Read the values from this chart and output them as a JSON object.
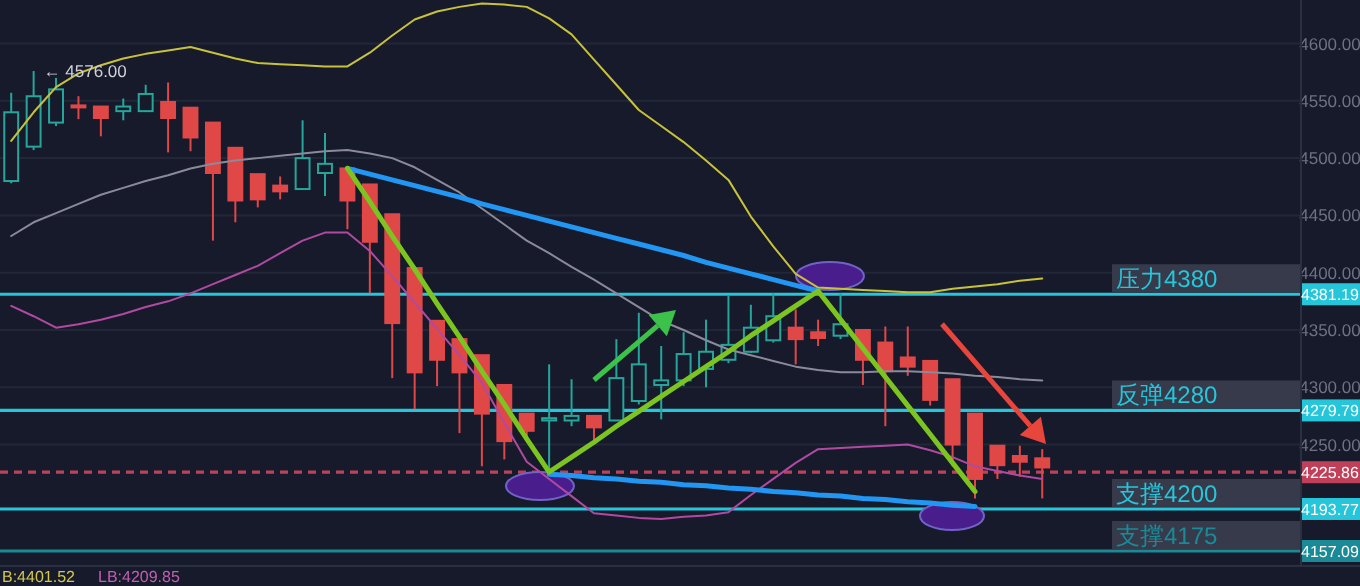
{
  "chart_data": {
    "type": "candlestick",
    "categories": [
      null,
      null,
      null,
      null,
      null,
      null,
      null,
      null,
      null,
      null,
      null,
      null,
      null,
      null,
      null,
      null,
      null,
      null,
      null,
      null,
      null,
      null,
      null,
      null,
      null,
      null,
      null,
      null,
      null,
      null,
      null,
      null,
      null,
      null,
      null,
      null,
      null,
      null,
      null,
      null,
      null,
      null,
      null,
      null,
      null,
      null,
      null,
      null,
      null,
      null,
      null,
      null,
      null,
      null,
      null,
      null,
      null,
      null
    ],
    "ohlc": [
      [
        4480,
        4557,
        4478,
        4540
      ],
      [
        4510,
        4576,
        4507,
        4554
      ],
      [
        4531,
        4570,
        4528,
        4560
      ],
      [
        4546,
        4554,
        4534,
        4545
      ],
      [
        4545,
        4545,
        4519,
        4535
      ],
      [
        4541,
        4552,
        4533,
        4545
      ],
      [
        4541,
        4564,
        4541,
        4556
      ],
      [
        4549,
        4566,
        4505,
        4535
      ],
      [
        4544,
        4544,
        4506,
        4518
      ],
      [
        4531,
        4531,
        4428,
        4487
      ],
      [
        4509,
        4509,
        4444,
        4463
      ],
      [
        4486,
        4486,
        4457,
        4464
      ],
      [
        4476,
        4484,
        4464,
        4471
      ],
      [
        4473,
        4533,
        4473,
        4500
      ],
      [
        4487,
        4522,
        4467,
        4495
      ],
      [
        4491,
        4491,
        4438,
        4463
      ],
      [
        4477,
        4477,
        4382,
        4427
      ],
      [
        4451,
        4451,
        4308,
        4356
      ],
      [
        4404,
        4404,
        4281,
        4313
      ],
      [
        4358,
        4358,
        4301,
        4324
      ],
      [
        4342,
        4342,
        4260,
        4313
      ],
      [
        4328,
        4328,
        4231,
        4277
      ],
      [
        4302,
        4302,
        4237,
        4253
      ],
      [
        4277,
        4277,
        4254,
        4262
      ],
      [
        4271,
        4320,
        4228,
        4273
      ],
      [
        4271,
        4307,
        4266,
        4275
      ],
      [
        4275,
        4275,
        4254,
        4265
      ],
      [
        4271,
        4342,
        4271,
        4308
      ],
      [
        4288,
        4365,
        4285,
        4320
      ],
      [
        4302,
        4336,
        4272,
        4306
      ],
      [
        4306,
        4348,
        4301,
        4329
      ],
      [
        4316,
        4359,
        4300,
        4331
      ],
      [
        4324,
        4380,
        4321,
        4337
      ],
      [
        4331,
        4372,
        4330,
        4352
      ],
      [
        4341,
        4382,
        4339,
        4362
      ],
      [
        4352,
        4368,
        4320,
        4342
      ],
      [
        4348,
        4359,
        4336,
        4343
      ],
      [
        4345,
        4382,
        4342,
        4355
      ],
      [
        4350,
        4350,
        4302,
        4324
      ],
      [
        4339,
        4353,
        4266,
        4314
      ],
      [
        4326,
        4353,
        4310,
        4318
      ],
      [
        4323,
        4323,
        4284,
        4289
      ],
      [
        4307,
        4307,
        4231,
        4250
      ],
      [
        4277,
        4277,
        4203,
        4220
      ],
      [
        4249,
        4249,
        4220,
        4232
      ],
      [
        4240,
        4249,
        4222,
        4235
      ],
      [
        4238,
        4246,
        4203,
        4230
      ],
      null,
      null,
      null,
      null,
      null,
      null,
      null,
      null,
      null,
      null,
      null
    ],
    "colors": [
      "#26a69a",
      "#26a69a",
      "#26a69a",
      "#e04848",
      "#e04848",
      "#26a69a",
      "#26a69a",
      "#e04848",
      "#e04848",
      "#e04848",
      "#e04848",
      "#e04848",
      "#e04848",
      "#26a69a",
      "#26a69a",
      "#e04848",
      "#e04848",
      "#e04848",
      "#e04848",
      "#e04848",
      "#e04848",
      "#e04848",
      "#e04848",
      "#e04848",
      "#26a69a",
      "#26a69a",
      "#e04848",
      "#26a69a",
      "#26a69a",
      "#26a69a",
      "#26a69a",
      "#26a69a",
      "#26a69a",
      "#26a69a",
      "#26a69a",
      "#e04848",
      "#e04848",
      "#26a69a",
      "#e04848",
      "#e04848",
      "#e04848",
      "#e04848",
      "#e04848",
      "#e04848",
      "#e04848",
      "#e04848",
      "#e04848",
      null,
      null,
      null,
      null,
      null,
      null,
      null,
      null,
      null,
      null,
      null
    ],
    "series": [
      {
        "type": "line",
        "color": "#c8c23a",
        "values": [
          4515,
          4540,
          4562,
          4574,
          4581,
          4587,
          4591,
          4594,
          4597,
          4592,
          4587,
          4583,
          4582,
          4581,
          4580,
          4580,
          4592,
          4607,
          4621,
          4628,
          4632,
          4635,
          4634,
          4632,
          4622,
          4608,
          4586,
          4564,
          4542,
          4528,
          4514,
          4498,
          4481,
          4449,
          4423,
          4399,
          4387,
          4386,
          4385,
          4384,
          4383,
          4383,
          4386,
          4388,
          4390,
          4393,
          4395,
          null,
          null,
          null,
          null,
          null,
          null,
          null,
          null,
          null,
          null,
          null
        ]
      },
      {
        "type": "line",
        "color": "#8a8a9a",
        "values": [
          4432,
          4444,
          4452,
          4460,
          4468,
          4474,
          4480,
          4485,
          4491,
          4495,
          4498,
          4500,
          4502,
          4504,
          4506,
          4507,
          4504,
          4500,
          4492,
          4481,
          4470,
          4456,
          4442,
          4428,
          4417,
          4405,
          4394,
          4382,
          4370,
          4358,
          4350,
          4341,
          4333,
          4328,
          4323,
          4318,
          4315,
          4313,
          4313,
          4314,
          4314,
          4313,
          4312,
          4310,
          4309,
          4307,
          4306,
          null,
          null,
          null,
          null,
          null,
          null,
          null,
          null,
          null,
          null,
          null
        ]
      },
      {
        "type": "line",
        "color": "#b04aa0",
        "values": [
          4371,
          4362,
          4352,
          4355,
          4359,
          4364,
          4370,
          4375,
          4382,
          4390,
          4398,
          4406,
          4417,
          4428,
          4435,
          4435,
          4419,
          4397,
          4374,
          4351,
          4328,
          4304,
          4269,
          4235,
          4220,
          4205,
          4190,
          4188,
          4186,
          4185,
          4187,
          4188,
          4191,
          4206,
          4220,
          4234,
          4246,
          4247,
          4248,
          4249,
          4250,
          4245,
          4239,
          4231,
          4227,
          4223,
          4220,
          null,
          null,
          null,
          null,
          null,
          null,
          null,
          null,
          null,
          null,
          null
        ]
      },
      {
        "type": "line",
        "color": "#2196f3",
        "values": [
          null,
          null,
          null,
          null,
          null,
          null,
          null,
          null,
          null,
          null,
          null,
          null,
          null,
          null,
          null,
          4491,
          4486,
          4481,
          4476,
          4471,
          4466,
          4460,
          4455,
          4450,
          4445,
          4440,
          4435,
          4430,
          4425,
          4420,
          4415,
          4409,
          4404,
          4399,
          4394,
          4389,
          4384,
          null,
          null,
          null,
          null,
          null,
          null,
          null,
          null,
          null,
          null,
          null,
          null,
          null,
          null,
          null,
          null,
          null,
          null,
          null,
          null,
          null
        ]
      },
      {
        "type": "line",
        "color": "#2196f3",
        "values": [
          null,
          null,
          null,
          null,
          null,
          null,
          null,
          null,
          null,
          null,
          null,
          null,
          null,
          null,
          null,
          null,
          null,
          null,
          null,
          null,
          null,
          null,
          null,
          null,
          4224,
          4223,
          4221,
          4220,
          4218,
          4217,
          4215,
          4214,
          4212,
          4211,
          4209,
          4208,
          4206,
          4205,
          4203,
          4202,
          4200,
          4199,
          4197,
          4196,
          null,
          null,
          null,
          null,
          null,
          null,
          null,
          null,
          null,
          null,
          null,
          null,
          null,
          null
        ]
      },
      {
        "type": "line",
        "color": "#7cc520",
        "values": [
          null,
          null,
          null,
          null,
          null,
          null,
          null,
          null,
          null,
          null,
          null,
          null,
          null,
          null,
          null,
          4491,
          4462,
          4432,
          4403,
          4373,
          4344,
          4314,
          4285,
          4255,
          4226,
          4239,
          4252,
          4266,
          4279,
          4292,
          4305,
          4318,
          4331,
          4345,
          4358,
          4371,
          4384,
          4359,
          4334,
          4309,
          4284,
          4259,
          4234,
          4209,
          null,
          null,
          null,
          null,
          null,
          null,
          null,
          null,
          null,
          null,
          null,
          null,
          null,
          null
        ]
      }
    ],
    "ylim": [
      4144,
      4638
    ],
    "yticks": [
      {
        "value": 4250,
        "label": "4250.00"
      },
      {
        "value": 4300,
        "label": "4300.00"
      },
      {
        "value": 4350,
        "label": "4350.00"
      },
      {
        "value": 4400,
        "label": "4400.00"
      },
      {
        "value": 4450,
        "label": "4450.00"
      },
      {
        "value": 4500,
        "label": "4500.00"
      },
      {
        "value": 4550,
        "label": "4550.00"
      },
      {
        "value": 4600,
        "label": "4600.00"
      }
    ],
    "grid": "y",
    "ref_lines": [
      {
        "axis": "y",
        "value": 4381.19,
        "label": "压力4380",
        "color": "#26c6da"
      },
      {
        "axis": "y",
        "value": 4279.79,
        "label": "反弹4280",
        "color": "#26c6da"
      },
      {
        "axis": "y",
        "value": 4225.86,
        "color": "#c0405a",
        "line_style": "dashed"
      },
      {
        "axis": "y",
        "value": 4193.77,
        "label": "支撑4200",
        "color": "#26c6da"
      },
      {
        "axis": "y",
        "value": 4157.09,
        "label": "支撑4175",
        "color": "#1a8a96"
      }
    ],
    "annotations": [
      {
        "text": "← 4576.00",
        "y": 4576
      },
      "B:4401.52",
      "LB:4209.85",
      {
        "text": "4381.19",
        "y": 4381.19
      },
      {
        "text": "4279.79",
        "y": 4279.79
      },
      {
        "text": "4225.86",
        "y": 4225.86
      },
      {
        "text": "4193.77",
        "y": 4193.77
      },
      {
        "text": "4157.09",
        "y": 4157.09
      }
    ]
  }
}
